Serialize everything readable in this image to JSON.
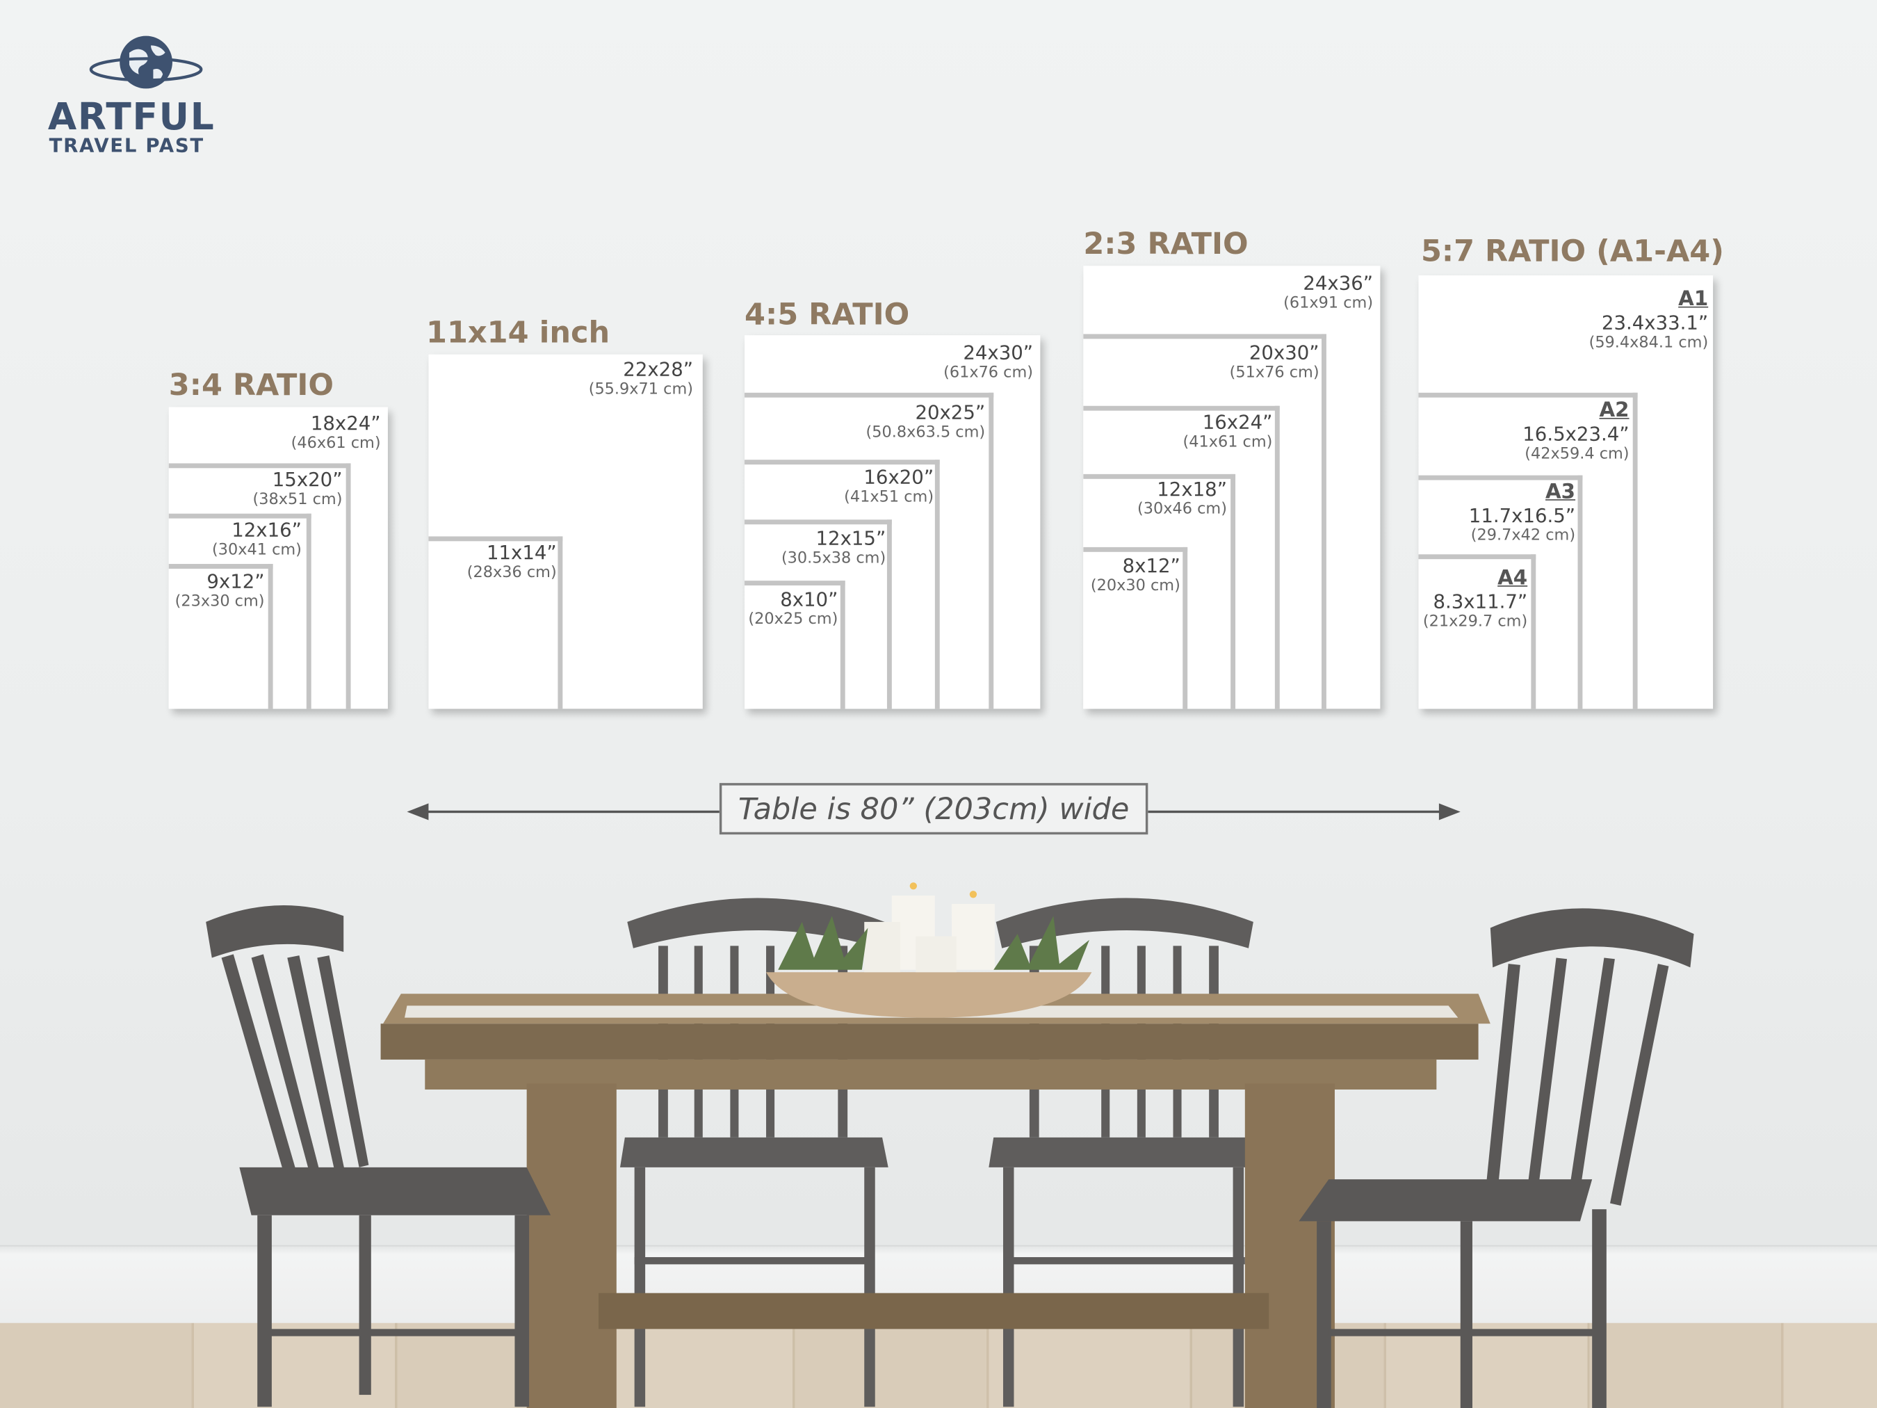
{
  "logo": {
    "line1": "ARTFUL",
    "line2": "TRAVEL PAST",
    "icon": "globe-with-orbit-icon",
    "color": "#3e5270"
  },
  "title_color": "#8f7a62",
  "groups": [
    {
      "title": "3:4 RATIO",
      "frames": [
        {
          "size": "18x24”",
          "cm": "(46x61 cm)"
        },
        {
          "size": "15x20”",
          "cm": "(38x51 cm)"
        },
        {
          "size": "12x16”",
          "cm": "(30x41 cm)"
        },
        {
          "size": "9x12”",
          "cm": "(23x30 cm)"
        }
      ]
    },
    {
      "title": "11x14 inch",
      "frames": [
        {
          "size": "22x28”",
          "cm": "(55.9x71 cm)"
        },
        {
          "size": "11x14”",
          "cm": "(28x36 cm)"
        }
      ]
    },
    {
      "title": "4:5 RATIO",
      "frames": [
        {
          "size": "24x30”",
          "cm": "(61x76 cm)"
        },
        {
          "size": "20x25”",
          "cm": "(50.8x63.5 cm)"
        },
        {
          "size": "16x20”",
          "cm": "(41x51 cm)"
        },
        {
          "size": "12x15”",
          "cm": "(30.5x38 cm)"
        },
        {
          "size": "8x10”",
          "cm": "(20x25 cm)"
        }
      ]
    },
    {
      "title": "2:3 RATIO",
      "frames": [
        {
          "size": "24x36”",
          "cm": "(61x91 cm)"
        },
        {
          "size": "20x30”",
          "cm": "(51x76 cm)"
        },
        {
          "size": "16x24”",
          "cm": "(41x61 cm)"
        },
        {
          "size": "12x18”",
          "cm": "(30x46 cm)"
        },
        {
          "size": "8x12”",
          "cm": "(20x30 cm)"
        }
      ]
    },
    {
      "title": "5:7 RATIO (A1-A4)",
      "frames": [
        {
          "name": "A1",
          "size": "23.4x33.1”",
          "cm": "(59.4x84.1 cm)"
        },
        {
          "name": "A2",
          "size": "16.5x23.4”",
          "cm": "(42x59.4 cm)"
        },
        {
          "name": "A3",
          "size": "11.7x16.5”",
          "cm": "(29.7x42 cm)"
        },
        {
          "name": "A4",
          "size": "8.3x11.7”",
          "cm": "(21x29.7 cm)"
        }
      ]
    }
  ],
  "table_caption": "Table is 80” (203cm) wide"
}
